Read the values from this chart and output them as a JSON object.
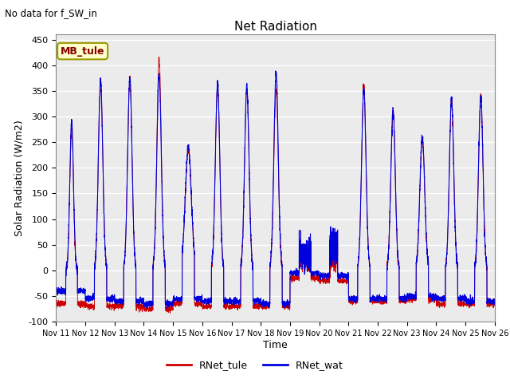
{
  "title": "Net Radiation",
  "suptitle": "No data for f_SW_in",
  "ylabel": "Solar Radiation (W/m2)",
  "xlabel": "Time",
  "ylim": [
    -100,
    460
  ],
  "yticks": [
    -100,
    -50,
    0,
    50,
    100,
    150,
    200,
    250,
    300,
    350,
    400,
    450
  ],
  "xtick_labels": [
    "Nov 11",
    "Nov 12",
    "Nov 13",
    "Nov 14",
    "Nov 15",
    "Nov 16",
    "Nov 17",
    "Nov 18",
    "Nov 19",
    "Nov 20",
    "Nov 21",
    "Nov 22",
    "Nov 23",
    "Nov 24",
    "Nov 25",
    "Nov 26"
  ],
  "color_tule": "#cc0000",
  "color_wat": "#0000dd",
  "legend_label_tule": "RNet_tule",
  "legend_label_wat": "RNet_wat",
  "annotation_text": "MB_tule",
  "fig_bg_color": "#ffffff",
  "plot_bg_color": "#ebebeb"
}
